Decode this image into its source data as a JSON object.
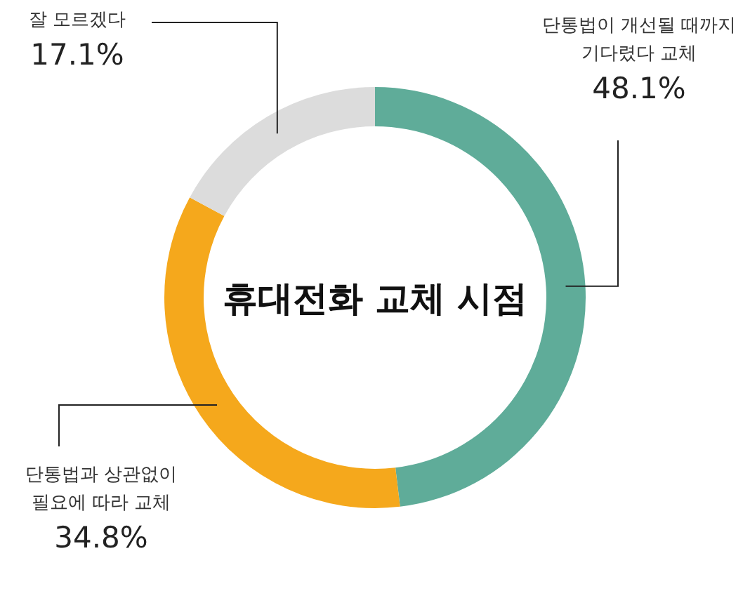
{
  "chart_data": {
    "type": "donut",
    "title": "휴대전화 교체 시점",
    "categories": [
      "단통법이 개선될 때까지 기다렸다 교체",
      "단통법과 상관없이 필요에 따라 교체",
      "잘 모르겠다"
    ],
    "values": [
      48.1,
      34.8,
      17.1
    ],
    "colors": [
      "#5fac99",
      "#f5a81c",
      "#dcdcdc"
    ],
    "value_labels": [
      "48.1%",
      "34.8%",
      "17.1%"
    ]
  }
}
